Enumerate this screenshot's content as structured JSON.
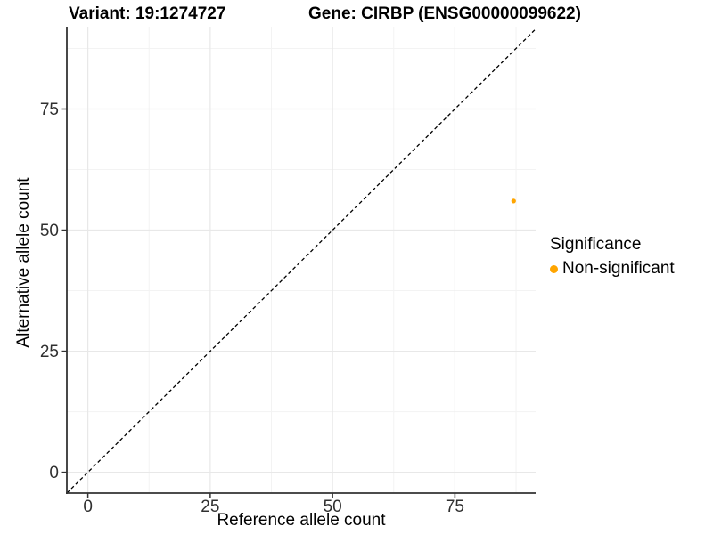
{
  "titles": {
    "variant": "Variant: 19:1274727",
    "gene": "Gene: CIRBP (ENSG00000099622)"
  },
  "chart_data": {
    "type": "scatter",
    "title": "Variant: 19:1274727   Gene: CIRBP (ENSG00000099622)",
    "xlabel": "Reference allele count",
    "ylabel": "Alternative allele count",
    "x_ticks": [
      0,
      25,
      50,
      75
    ],
    "y_ticks": [
      0,
      25,
      50,
      75
    ],
    "tick_step": 25,
    "xlim": [
      -4.3,
      91.5
    ],
    "ylim": [
      -4.3,
      92.0
    ],
    "grid": "major gridlines at ticks, minor at midpoints, light gray on white",
    "points": [
      {
        "x": 87,
        "y": 56,
        "series": "Non-significant",
        "color": "#FFA500"
      }
    ],
    "reference_line": {
      "type": "identity y = x",
      "style": "dashed",
      "color": "#000000"
    },
    "legend": {
      "position": "right",
      "title": "Significance",
      "items": [
        {
          "label": "Non-significant",
          "color": "#FFA500",
          "marker": "circle"
        }
      ]
    }
  },
  "colors": {
    "background": "#FFFFFF",
    "point": "#FFA500",
    "axis_line": "#333333",
    "tick_text": "#303030",
    "grid_major": "#E8E8E8",
    "grid_minor": "#F3F3F3",
    "dashed_line": "#000000"
  }
}
